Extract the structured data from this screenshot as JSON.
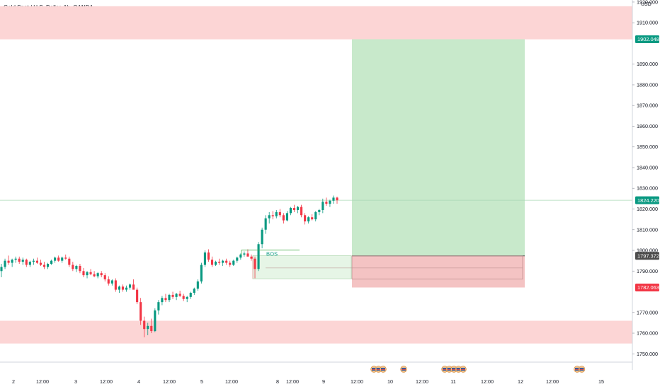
{
  "header": {
    "title": "Gold Spot / U.S. Dollar, 1h, OANDA",
    "currency": "USD"
  },
  "colors": {
    "up": "#089981",
    "down": "#f23645",
    "zone": "#fcd5d5",
    "profit": "#c8e9cb",
    "loss": "#f4c3c3",
    "last_line": "#a8d8b4",
    "entry_line": "#131722"
  },
  "chart_data": {
    "type": "candlestick",
    "y_axis": {
      "ylim": [
        1746,
        1921
      ],
      "ticks": [
        1920,
        1910,
        1890,
        1880,
        1870,
        1860,
        1850,
        1840,
        1830,
        1820,
        1810,
        1800,
        1790,
        1770,
        1760,
        1750
      ],
      "tick_labels": [
        "1920.000",
        "1910.000",
        "1890.000",
        "1880.000",
        "1870.000",
        "1860.000",
        "1850.000",
        "1840.000",
        "1830.000",
        "1820.000",
        "1810.000",
        "1800.000",
        "1790.000",
        "1770.000",
        "1760.000",
        "1750.000"
      ]
    },
    "x_axis": {
      "tick_labels": [
        "2",
        "12:00",
        "3",
        "12:00",
        "4",
        "12:00",
        "5",
        "12:00",
        "8",
        "12:00",
        "9",
        "12:00",
        "10",
        "12:00",
        "11",
        "12:00",
        "12",
        "12:00",
        "15"
      ]
    },
    "price_tags": [
      {
        "label": "1902.048",
        "value": 1902.048,
        "color": "#089981"
      },
      {
        "label": "1824.220",
        "value": 1824.22,
        "color": "#089981"
      },
      {
        "label": "1797.372",
        "value": 1797.372,
        "color": "#4d4d4d"
      },
      {
        "label": "1782.063",
        "value": 1782.063,
        "color": "#f23645"
      }
    ],
    "zones": [
      {
        "name": "supply",
        "low": 1902.0,
        "high": 1918.0
      },
      {
        "name": "demand",
        "low": 1755.0,
        "high": 1766.0
      }
    ],
    "position": {
      "entry": 1797.372,
      "target": 1902.048,
      "stop": 1782.063
    },
    "annotations": [
      {
        "text": "BOS",
        "value": 1800.2
      }
    ],
    "events": {
      "count_at_10": 3,
      "count_at_10b": 1,
      "count_at_11": 5,
      "count_at_15": 2
    },
    "last_price": 1824.22,
    "candles": [
      [
        1790.0,
        1793.5,
        1787.0,
        1792.0
      ],
      [
        1792.0,
        1796.0,
        1791.0,
        1795.0
      ],
      [
        1795.0,
        1797.5,
        1793.0,
        1794.0
      ],
      [
        1794.0,
        1796.0,
        1792.0,
        1795.5
      ],
      [
        1795.5,
        1797.0,
        1794.0,
        1796.0
      ],
      [
        1796.0,
        1797.0,
        1793.5,
        1794.5
      ],
      [
        1794.5,
        1796.5,
        1793.0,
        1795.5
      ],
      [
        1795.5,
        1796.0,
        1792.0,
        1793.0
      ],
      [
        1793.0,
        1795.0,
        1792.0,
        1794.5
      ],
      [
        1794.5,
        1796.0,
        1793.0,
        1795.0
      ],
      [
        1795.0,
        1796.5,
        1793.5,
        1794.0
      ],
      [
        1794.0,
        1795.5,
        1792.5,
        1793.0
      ],
      [
        1793.0,
        1794.5,
        1791.0,
        1792.0
      ],
      [
        1792.0,
        1794.0,
        1791.0,
        1793.5
      ],
      [
        1793.5,
        1795.5,
        1793.0,
        1795.0
      ],
      [
        1795.0,
        1797.0,
        1794.0,
        1796.5
      ],
      [
        1796.5,
        1797.5,
        1794.5,
        1795.0
      ],
      [
        1795.0,
        1797.0,
        1794.0,
        1796.5
      ],
      [
        1796.5,
        1798.0,
        1795.5,
        1796.0
      ],
      [
        1796.0,
        1797.0,
        1792.0,
        1793.0
      ],
      [
        1793.0,
        1794.5,
        1790.0,
        1791.0
      ],
      [
        1791.0,
        1793.0,
        1789.5,
        1792.5
      ],
      [
        1792.5,
        1793.5,
        1789.0,
        1790.0
      ],
      [
        1790.0,
        1791.5,
        1787.0,
        1788.0
      ],
      [
        1788.0,
        1790.0,
        1786.5,
        1789.5
      ],
      [
        1789.5,
        1791.0,
        1788.0,
        1788.5
      ],
      [
        1788.5,
        1790.0,
        1787.0,
        1787.5
      ],
      [
        1787.5,
        1789.5,
        1786.5,
        1789.0
      ],
      [
        1789.0,
        1790.0,
        1787.0,
        1788.0
      ],
      [
        1788.0,
        1789.0,
        1785.0,
        1786.0
      ],
      [
        1786.0,
        1787.5,
        1783.0,
        1784.0
      ],
      [
        1784.0,
        1786.0,
        1783.0,
        1785.5
      ],
      [
        1785.5,
        1786.5,
        1780.0,
        1781.0
      ],
      [
        1781.0,
        1783.0,
        1779.5,
        1782.5
      ],
      [
        1782.5,
        1783.5,
        1780.0,
        1781.0
      ],
      [
        1781.0,
        1783.0,
        1780.0,
        1782.0
      ],
      [
        1782.0,
        1784.0,
        1781.0,
        1783.5
      ],
      [
        1783.5,
        1786.0,
        1782.0,
        1781.0
      ],
      [
        1781.0,
        1782.0,
        1774.0,
        1775.0
      ],
      [
        1775.0,
        1777.0,
        1764.0,
        1766.0
      ],
      [
        1766.0,
        1768.0,
        1758.0,
        1762.0
      ],
      [
        1762.0,
        1765.0,
        1759.0,
        1763.5
      ],
      [
        1763.5,
        1767.0,
        1760.0,
        1761.0
      ],
      [
        1761.0,
        1772.0,
        1760.5,
        1771.0
      ],
      [
        1771.0,
        1776.0,
        1769.0,
        1775.0
      ],
      [
        1775.0,
        1778.0,
        1773.5,
        1777.0
      ],
      [
        1777.0,
        1779.0,
        1775.0,
        1776.0
      ],
      [
        1776.0,
        1779.0,
        1775.0,
        1778.5
      ],
      [
        1778.5,
        1780.0,
        1776.5,
        1777.5
      ],
      [
        1777.5,
        1779.5,
        1776.0,
        1779.0
      ],
      [
        1779.0,
        1780.5,
        1777.5,
        1778.0
      ],
      [
        1778.0,
        1779.0,
        1775.5,
        1776.5
      ],
      [
        1776.5,
        1778.0,
        1775.0,
        1777.5
      ],
      [
        1777.5,
        1780.0,
        1776.5,
        1779.5
      ],
      [
        1779.5,
        1782.0,
        1778.5,
        1781.5
      ],
      [
        1781.5,
        1786.0,
        1780.5,
        1785.0
      ],
      [
        1785.0,
        1794.0,
        1784.0,
        1793.0
      ],
      [
        1793.0,
        1800.0,
        1792.0,
        1799.0
      ],
      [
        1799.0,
        1800.5,
        1794.5,
        1795.5
      ],
      [
        1795.5,
        1797.0,
        1792.0,
        1793.0
      ],
      [
        1793.0,
        1795.0,
        1792.5,
        1794.5
      ],
      [
        1794.5,
        1796.0,
        1793.0,
        1794.0
      ],
      [
        1794.0,
        1795.5,
        1792.5,
        1795.0
      ],
      [
        1795.0,
        1796.0,
        1793.0,
        1794.0
      ],
      [
        1794.0,
        1795.0,
        1792.0,
        1793.0
      ],
      [
        1793.0,
        1795.5,
        1792.5,
        1795.0
      ],
      [
        1795.0,
        1797.0,
        1794.0,
        1796.5
      ],
      [
        1796.5,
        1798.5,
        1795.5,
        1798.0
      ],
      [
        1798.0,
        1799.5,
        1797.0,
        1798.5
      ],
      [
        1798.5,
        1800.5,
        1797.5,
        1797.0
      ],
      [
        1797.0,
        1798.0,
        1795.0,
        1796.0
      ],
      [
        1796.0,
        1797.0,
        1786.5,
        1791.0
      ],
      [
        1791.0,
        1804.0,
        1790.0,
        1803.0
      ],
      [
        1803.0,
        1811.0,
        1801.0,
        1810.0
      ],
      [
        1810.0,
        1817.0,
        1808.0,
        1815.5
      ],
      [
        1815.5,
        1818.5,
        1813.0,
        1817.0
      ],
      [
        1817.0,
        1819.0,
        1815.0,
        1816.5
      ],
      [
        1816.5,
        1819.5,
        1815.5,
        1818.5
      ],
      [
        1818.5,
        1820.0,
        1816.0,
        1817.0
      ],
      [
        1817.0,
        1818.0,
        1813.0,
        1814.5
      ],
      [
        1814.5,
        1819.0,
        1814.0,
        1818.0
      ],
      [
        1818.0,
        1821.0,
        1817.0,
        1820.5
      ],
      [
        1820.5,
        1822.0,
        1818.5,
        1819.5
      ],
      [
        1819.5,
        1821.5,
        1818.0,
        1821.0
      ],
      [
        1821.0,
        1822.0,
        1816.0,
        1817.0
      ],
      [
        1817.0,
        1818.0,
        1812.5,
        1814.0
      ],
      [
        1814.0,
        1816.5,
        1813.0,
        1816.0
      ],
      [
        1816.0,
        1817.5,
        1814.5,
        1815.0
      ],
      [
        1815.0,
        1819.0,
        1814.0,
        1818.5
      ],
      [
        1818.5,
        1820.0,
        1817.0,
        1819.5
      ],
      [
        1819.5,
        1825.0,
        1818.0,
        1823.5
      ],
      [
        1823.5,
        1825.5,
        1821.5,
        1822.5
      ],
      [
        1822.5,
        1824.5,
        1821.0,
        1824.0
      ],
      [
        1824.0,
        1826.5,
        1822.5,
        1825.5
      ],
      [
        1825.5,
        1826.0,
        1822.5,
        1824.22
      ]
    ]
  }
}
